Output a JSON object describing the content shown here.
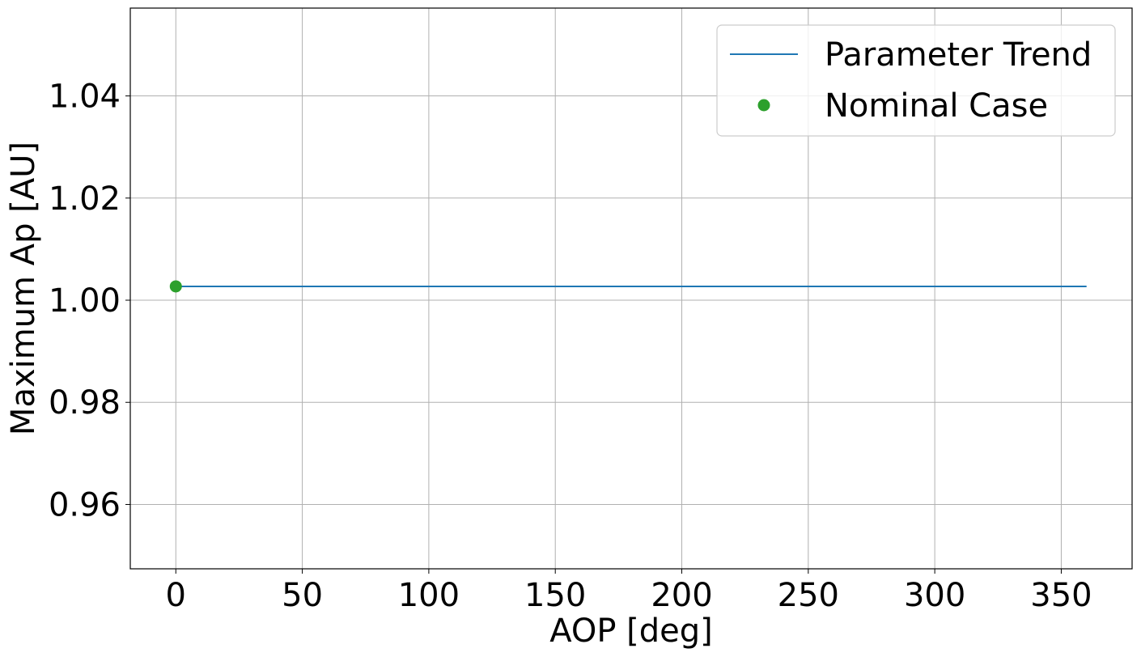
{
  "chart_data": {
    "type": "line",
    "title": "",
    "xlabel": "AOP [deg]",
    "ylabel": "Maximum Ap [AU]",
    "xlim": [
      -18,
      378
    ],
    "ylim": [
      0.9474,
      1.0572
    ],
    "xticks": [
      0,
      50,
      100,
      150,
      200,
      250,
      300,
      350
    ],
    "yticks": [
      0.96,
      0.98,
      1.0,
      1.02,
      1.04
    ],
    "xtick_labels": [
      "0",
      "50",
      "100",
      "150",
      "200",
      "250",
      "300",
      "350"
    ],
    "ytick_labels": [
      "0.96",
      "0.98",
      "1.00",
      "1.02",
      "1.04"
    ],
    "grid": true,
    "legend_position": "top-right",
    "series": [
      {
        "name": "Parameter Trend",
        "kind": "line",
        "color": "#1f77b4",
        "x": [
          0,
          360
        ],
        "y": [
          1.0027,
          1.0027
        ]
      },
      {
        "name": "Nominal Case",
        "kind": "marker",
        "color": "#2ca02c",
        "x": [
          0
        ],
        "y": [
          1.0027
        ]
      }
    ]
  }
}
